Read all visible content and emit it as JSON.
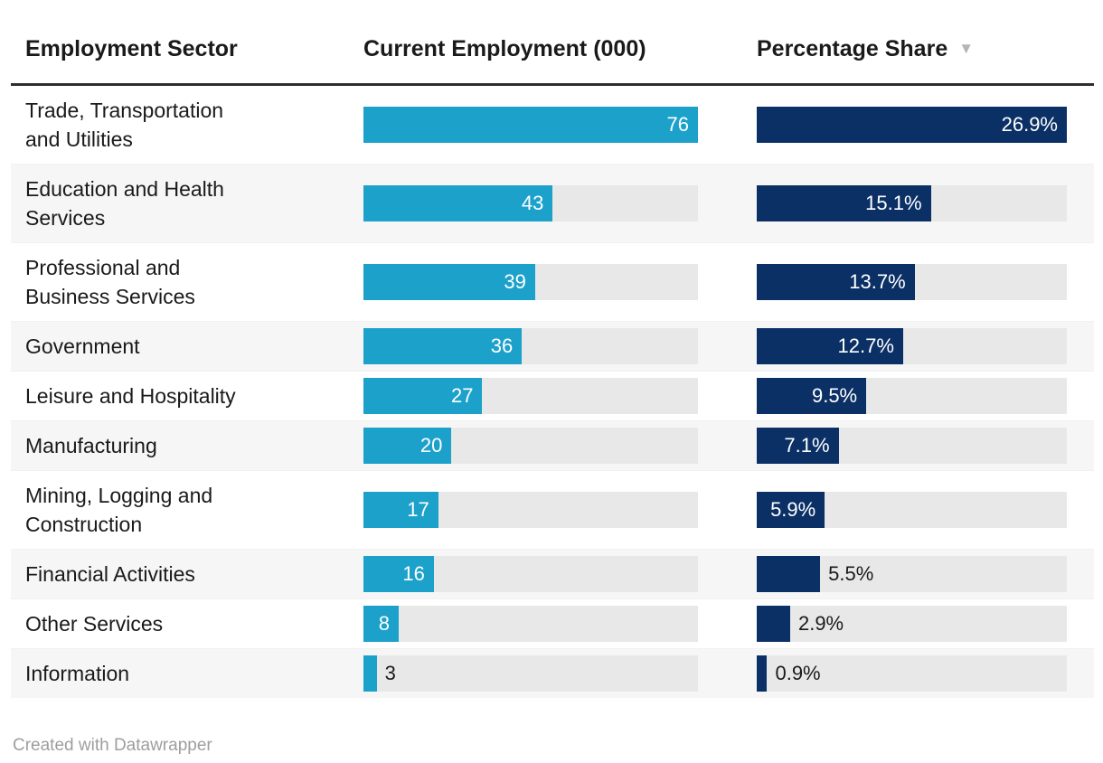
{
  "table": {
    "columns": [
      {
        "label": "Employment Sector",
        "sorted": false
      },
      {
        "label": "Current Employment (000)",
        "sorted": false
      },
      {
        "label": "Percentage Share",
        "sorted": true,
        "sort_icon": "▼",
        "sort_direction": "descending"
      }
    ],
    "employment_axis_max": 76,
    "share_axis_max": 26.9,
    "rows": [
      {
        "sector": "Trade, Transportation and Utilities",
        "employment": 76,
        "employment_label": "76",
        "employment_label_position": "inside",
        "share": 26.9,
        "share_label": "26.9%",
        "share_label_position": "inside"
      },
      {
        "sector": "Education and Health Services",
        "employment": 43,
        "employment_label": "43",
        "employment_label_position": "inside",
        "share": 15.1,
        "share_label": "15.1%",
        "share_label_position": "inside"
      },
      {
        "sector": "Professional and Business Services",
        "employment": 39,
        "employment_label": "39",
        "employment_label_position": "inside",
        "share": 13.7,
        "share_label": "13.7%",
        "share_label_position": "inside"
      },
      {
        "sector": "Government",
        "employment": 36,
        "employment_label": "36",
        "employment_label_position": "inside",
        "share": 12.7,
        "share_label": "12.7%",
        "share_label_position": "inside"
      },
      {
        "sector": "Leisure and Hospitality",
        "employment": 27,
        "employment_label": "27",
        "employment_label_position": "inside",
        "share": 9.5,
        "share_label": "9.5%",
        "share_label_position": "inside"
      },
      {
        "sector": "Manufacturing",
        "employment": 20,
        "employment_label": "20",
        "employment_label_position": "inside",
        "share": 7.1,
        "share_label": "7.1%",
        "share_label_position": "inside"
      },
      {
        "sector": "Mining, Logging and Construction",
        "employment": 17,
        "employment_label": "17",
        "employment_label_position": "inside",
        "share": 5.9,
        "share_label": "5.9%",
        "share_label_position": "inside"
      },
      {
        "sector": "Financial Activities",
        "employment": 16,
        "employment_label": "16",
        "employment_label_position": "inside",
        "share": 5.5,
        "share_label": "5.5%",
        "share_label_position": "outside"
      },
      {
        "sector": "Other Services",
        "employment": 8,
        "employment_label": "8",
        "employment_label_position": "inside",
        "share": 2.9,
        "share_label": "2.9%",
        "share_label_position": "outside"
      },
      {
        "sector": "Information",
        "employment": 3,
        "employment_label": "3",
        "employment_label_position": "outside",
        "share": 0.9,
        "share_label": "0.9%",
        "share_label_position": "outside"
      }
    ]
  },
  "footer": {
    "credit": "Created with Datawrapper"
  },
  "colors": {
    "employment_bar": "#1ca1cb",
    "share_bar": "#0b3066",
    "bar_track": "#e8e8e8",
    "row_alt_background": "#f6f6f6",
    "header_rule": "#2e2e2e",
    "text": "#1a1a1a",
    "bar_label_inside": "#ffffff",
    "sort_icon": "#b5b5b5",
    "footer_text": "#9e9e9e"
  },
  "chart_data": {
    "type": "table",
    "title": "",
    "categories": [
      "Trade, Transportation and Utilities",
      "Education and Health Services",
      "Professional and Business Services",
      "Government",
      "Leisure and Hospitality",
      "Manufacturing",
      "Mining, Logging and Construction",
      "Financial Activities",
      "Other Services",
      "Information"
    ],
    "series": [
      {
        "name": "Current Employment (000)",
        "type": "bar",
        "values": [
          76,
          43,
          39,
          36,
          27,
          20,
          17,
          16,
          8,
          3
        ],
        "axis_max": 76
      },
      {
        "name": "Percentage Share",
        "type": "bar",
        "values": [
          26.9,
          15.1,
          13.7,
          12.7,
          9.5,
          7.1,
          5.9,
          5.5,
          2.9,
          0.9
        ],
        "axis_max": 26.9,
        "value_suffix": "%"
      }
    ],
    "sort": {
      "column": "Percentage Share",
      "direction": "descending"
    },
    "legend_position": "none",
    "grid": false,
    "credit": "Created with Datawrapper"
  }
}
